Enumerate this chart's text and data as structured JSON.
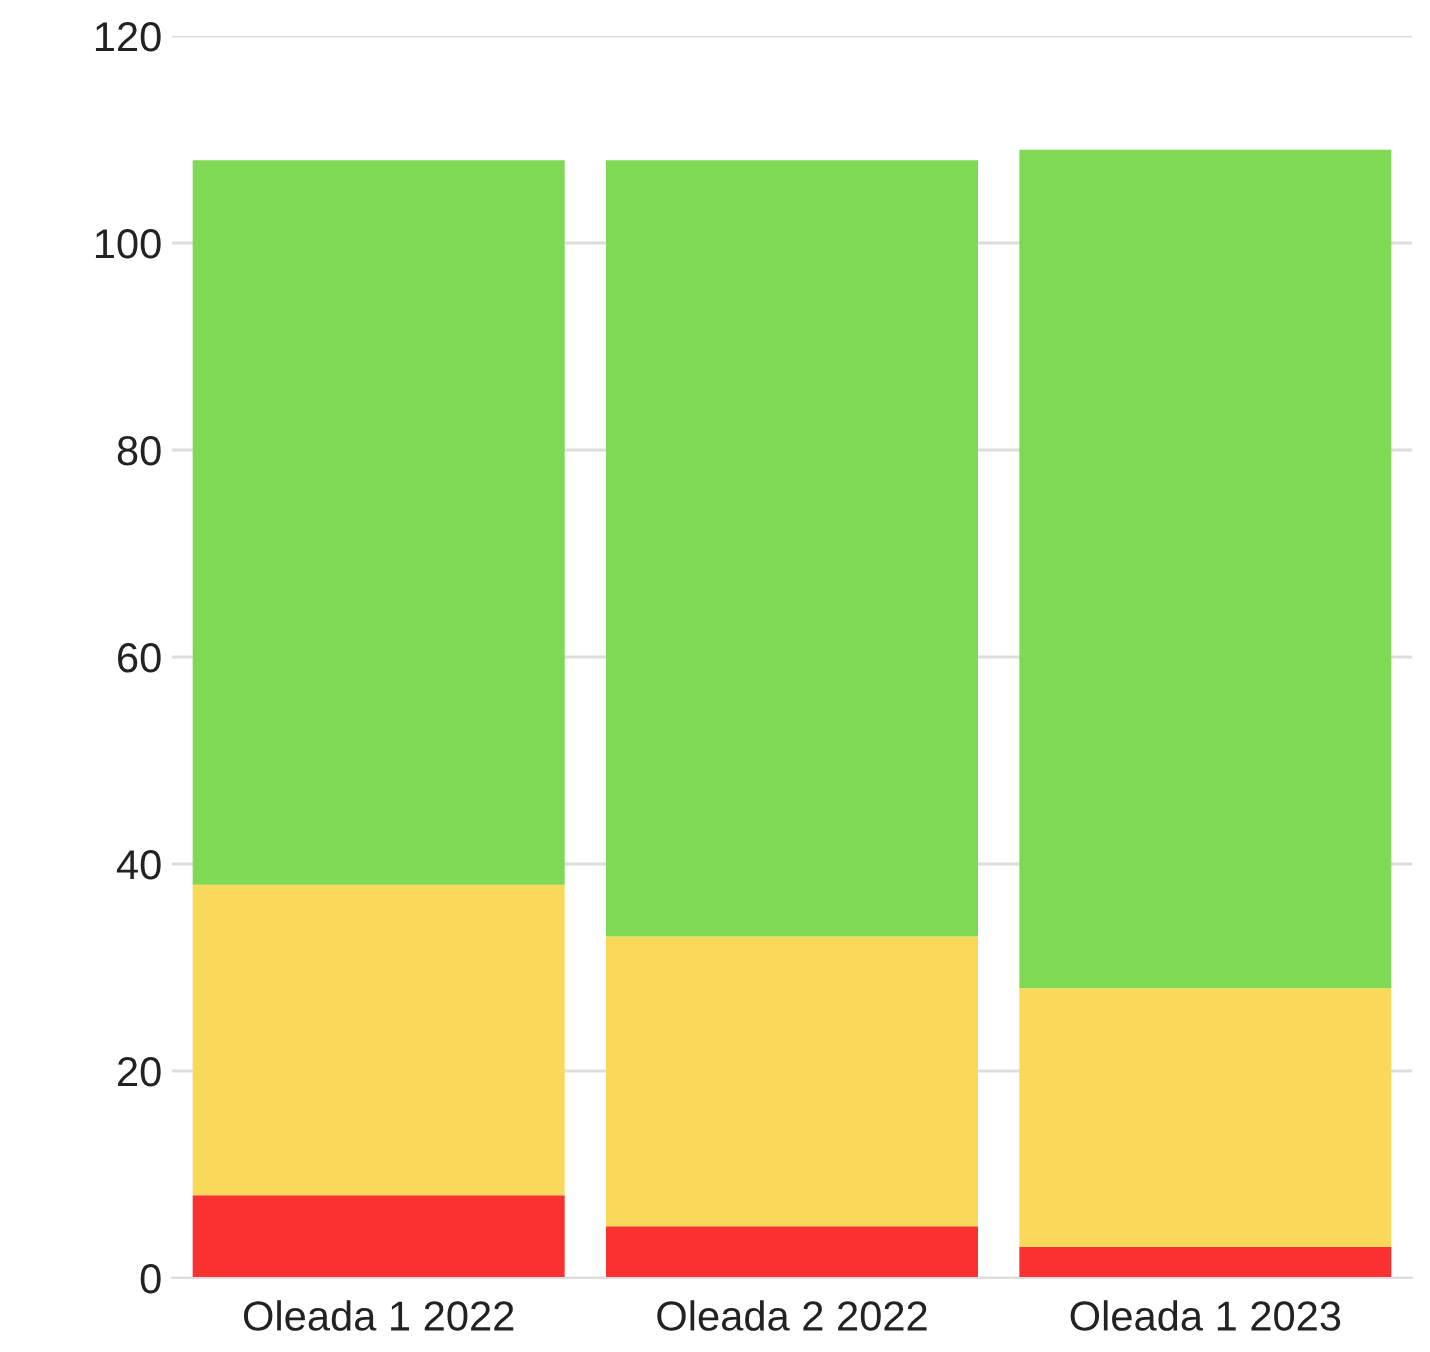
{
  "chart_data": {
    "type": "bar",
    "stacked": true,
    "categories": [
      "Oleada 1 2022",
      "Oleada 2 2022",
      "Oleada 1 2023"
    ],
    "series": [
      {
        "color": "#f93131",
        "values": [
          8,
          5,
          3
        ]
      },
      {
        "color": "#fad85a",
        "values": [
          30,
          28,
          25
        ]
      },
      {
        "color": "#7fd955",
        "values": [
          70,
          75,
          81
        ]
      }
    ],
    "ylim": [
      0,
      120
    ],
    "yticks": [
      0,
      20,
      40,
      60,
      80,
      100,
      120
    ],
    "grid": "y"
  }
}
